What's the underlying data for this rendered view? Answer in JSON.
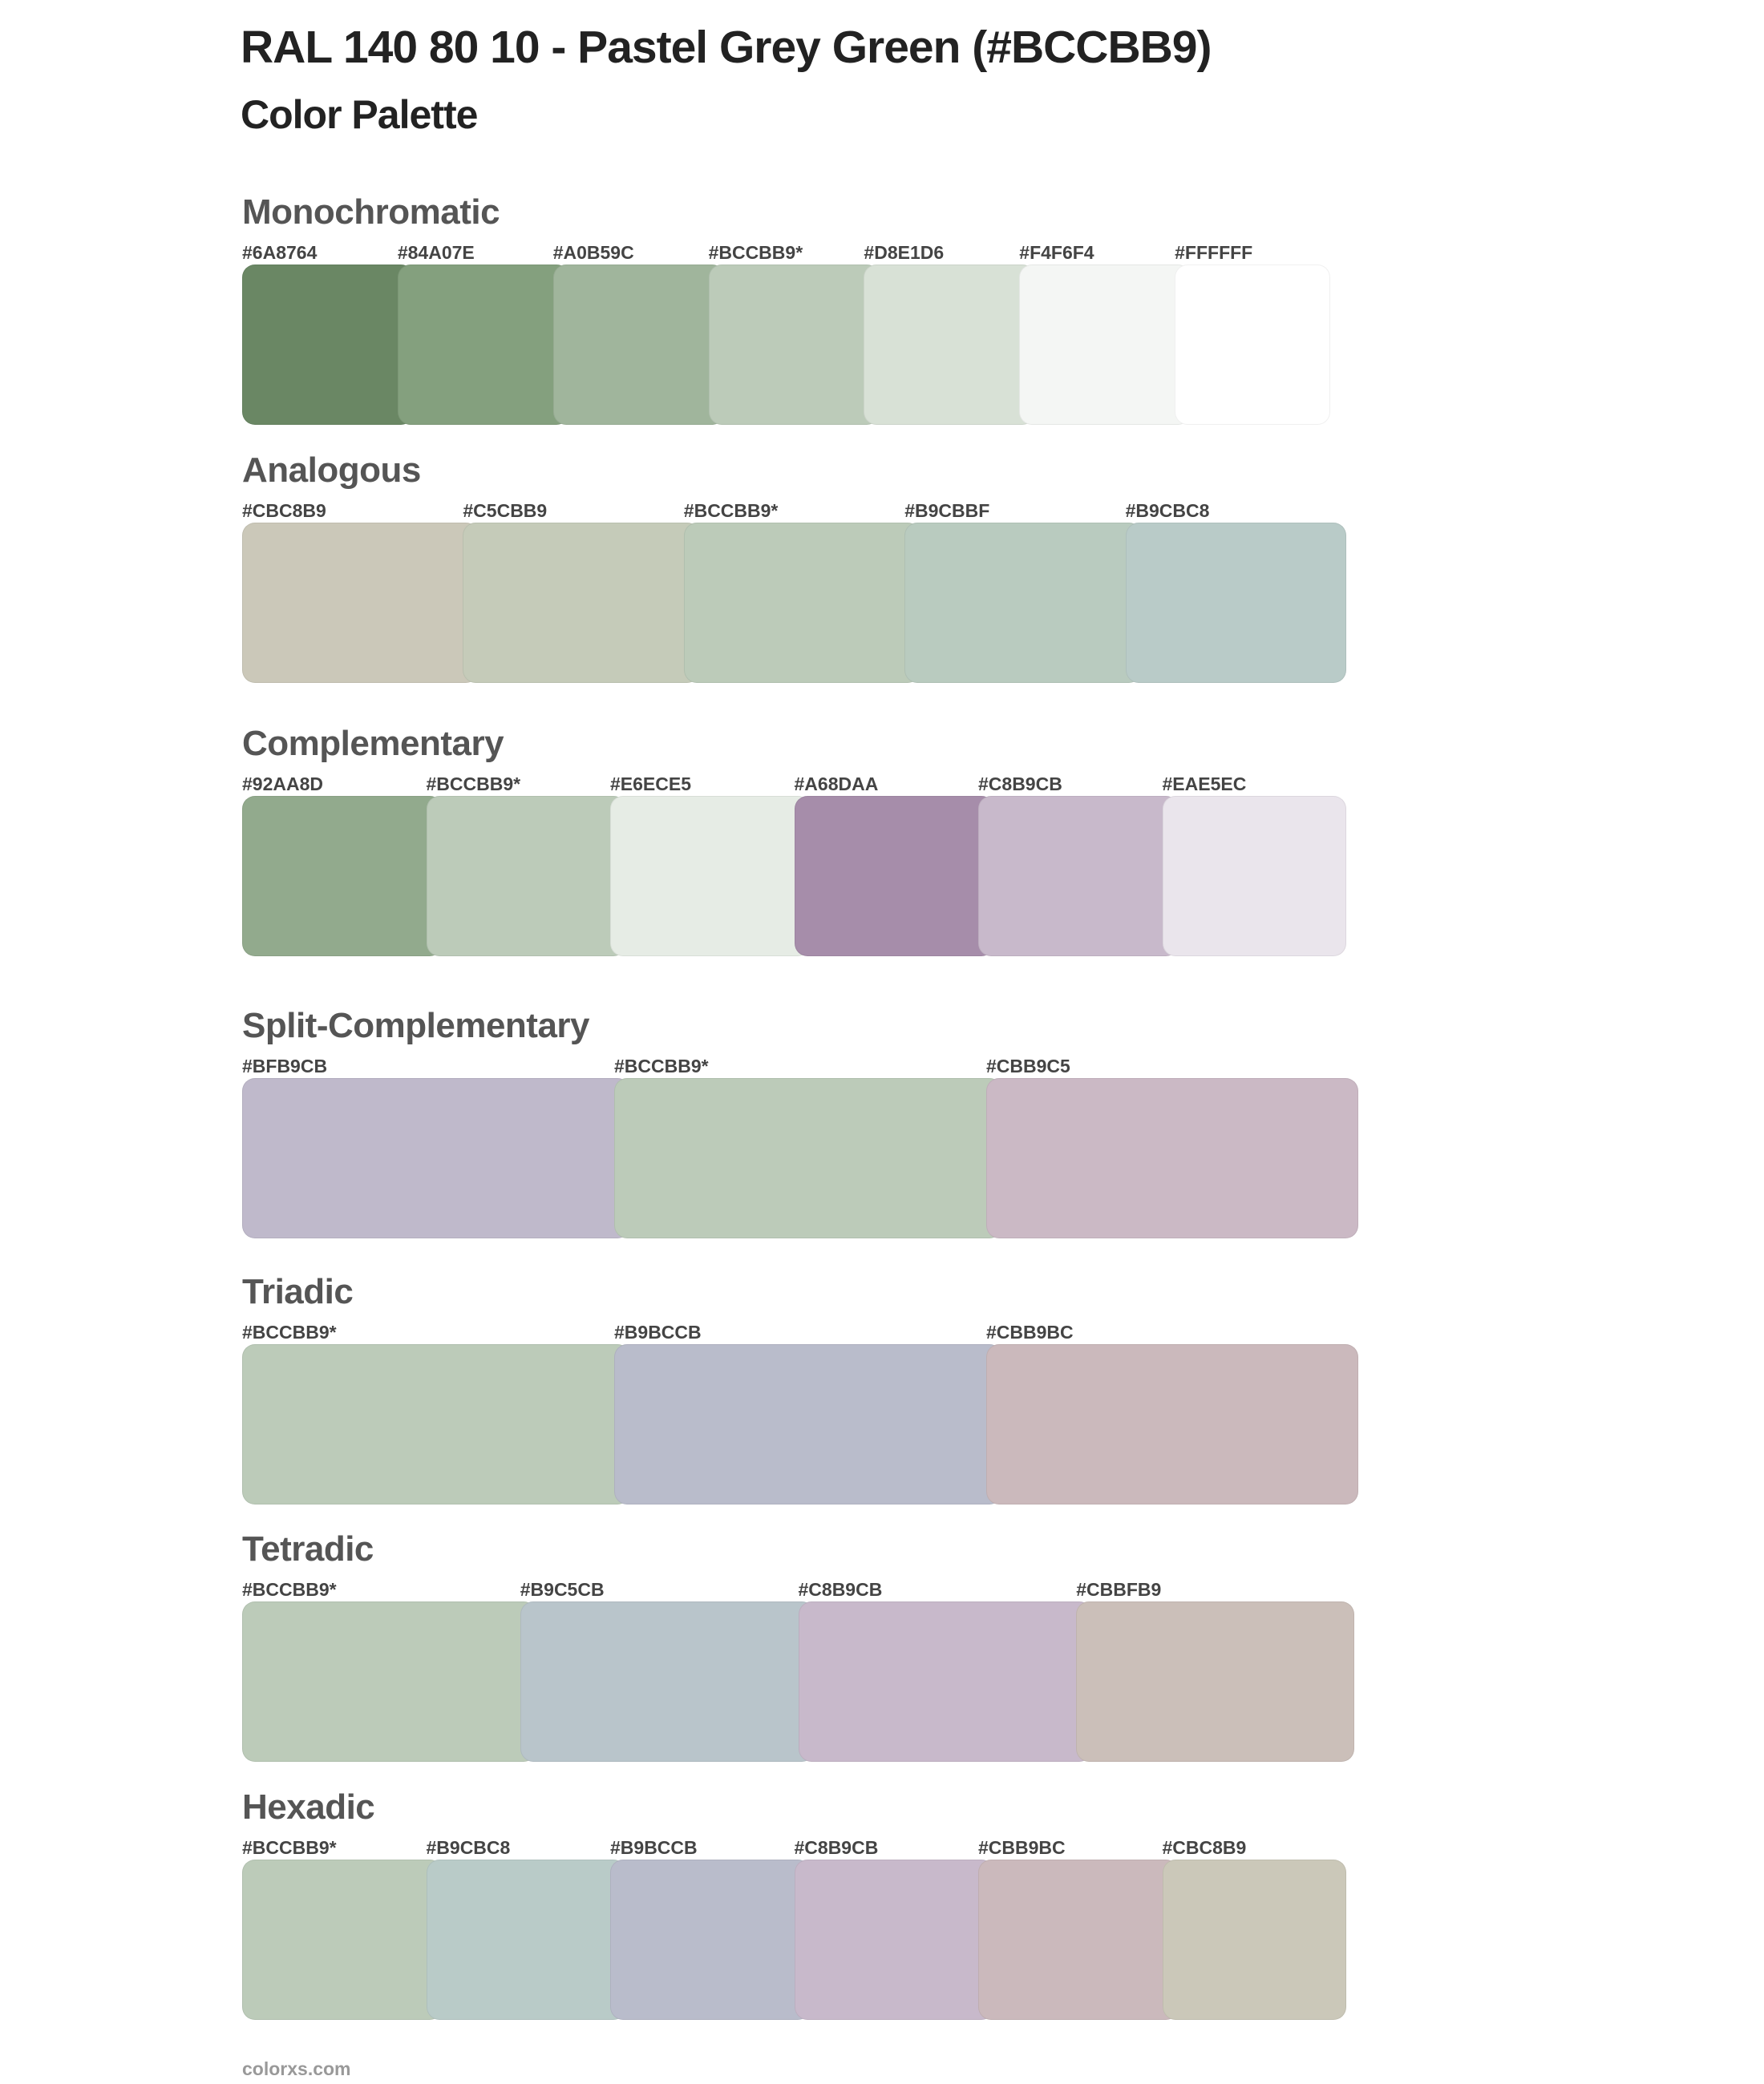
{
  "title": "RAL 140 80 10 - Pastel Grey Green (#BCCBB9)",
  "subtitle": "Color Palette",
  "sections": [
    {
      "name": "Monochromatic",
      "swatches": [
        {
          "label": "#6A8764",
          "color": "#6A8764"
        },
        {
          "label": "#84A07E",
          "color": "#84A07E"
        },
        {
          "label": "#A0B59C",
          "color": "#A0B59C"
        },
        {
          "label": "#BCCBB9*",
          "color": "#BCCBB9"
        },
        {
          "label": "#D8E1D6",
          "color": "#D8E1D6"
        },
        {
          "label": "#F4F6F4",
          "color": "#F4F6F4"
        },
        {
          "label": "#FFFFFF",
          "color": "#FFFFFF"
        }
      ]
    },
    {
      "name": "Analogous",
      "swatches": [
        {
          "label": "#CBC8B9",
          "color": "#CBC8B9"
        },
        {
          "label": "#C5CBB9",
          "color": "#C5CBB9"
        },
        {
          "label": "#BCCBB9*",
          "color": "#BCCBB9"
        },
        {
          "label": "#B9CBBF",
          "color": "#B9CBBF"
        },
        {
          "label": "#B9CBC8",
          "color": "#B9CBC8"
        }
      ]
    },
    {
      "name": "Complementary",
      "swatches": [
        {
          "label": "#92AA8D",
          "color": "#92AA8D"
        },
        {
          "label": "#BCCBB9*",
          "color": "#BCCBB9"
        },
        {
          "label": "#E6ECE5",
          "color": "#E6ECE5"
        },
        {
          "label": "#A68DAA",
          "color": "#A68DAA"
        },
        {
          "label": "#C8B9CB",
          "color": "#C8B9CB"
        },
        {
          "label": "#EAE5EC",
          "color": "#EAE5EC"
        }
      ]
    },
    {
      "name": "Split-Complementary",
      "swatches": [
        {
          "label": "#BFB9CB",
          "color": "#BFB9CB"
        },
        {
          "label": "#BCCBB9*",
          "color": "#BCCBB9"
        },
        {
          "label": "#CBB9C5",
          "color": "#CBB9C5"
        }
      ]
    },
    {
      "name": "Triadic",
      "swatches": [
        {
          "label": "#BCCBB9*",
          "color": "#BCCBB9"
        },
        {
          "label": "#B9BCCB",
          "color": "#B9BCCB"
        },
        {
          "label": "#CBB9BC",
          "color": "#CBB9BC"
        }
      ]
    },
    {
      "name": "Tetradic",
      "swatches": [
        {
          "label": "#BCCBB9*",
          "color": "#BCCBB9"
        },
        {
          "label": "#B9C5CB",
          "color": "#B9C5CB"
        },
        {
          "label": "#C8B9CB",
          "color": "#C8B9CB"
        },
        {
          "label": "#CBBFB9",
          "color": "#CBBFB9"
        }
      ]
    },
    {
      "name": "Hexadic",
      "swatches": [
        {
          "label": "#BCCBB9*",
          "color": "#BCCBB9"
        },
        {
          "label": "#B9CBC8",
          "color": "#B9CBC8"
        },
        {
          "label": "#B9BCCB",
          "color": "#B9BCCB"
        },
        {
          "label": "#C8B9CB",
          "color": "#C8B9CB"
        },
        {
          "label": "#CBB9BC",
          "color": "#CBB9BC"
        },
        {
          "label": "#CBC8B9",
          "color": "#CBC8B9"
        }
      ]
    }
  ],
  "footer": "colorxs.com"
}
